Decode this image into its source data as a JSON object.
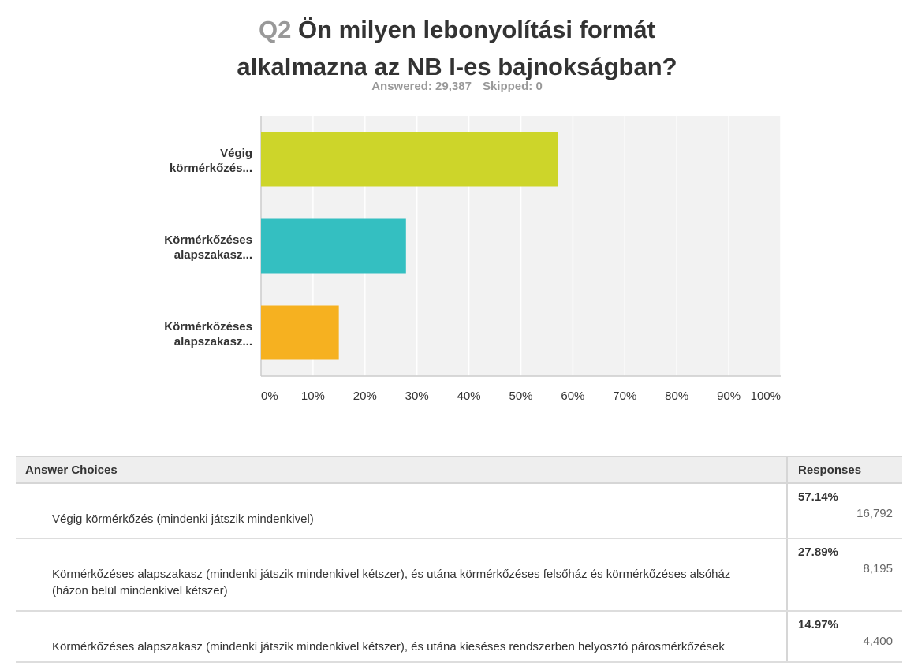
{
  "question": {
    "number": "Q2",
    "title_line1": "Ön milyen lebonyolítási formát",
    "title_line2": "alkalmazna az NB I-es bajnokságban?"
  },
  "summary": {
    "answered": "Answered: 29,387",
    "skipped": "Skipped: 0"
  },
  "chart_data": {
    "type": "bar",
    "orientation": "horizontal",
    "categories": [
      [
        "Végig",
        "körmérkőzés..."
      ],
      [
        "Körmérkőzéses",
        "alapszakasz..."
      ],
      [
        "Körmérkőzéses",
        "alapszakasz..."
      ]
    ],
    "values": [
      57.14,
      27.89,
      14.97
    ],
    "colors": [
      "#cdd52a",
      "#34bfc1",
      "#f6b120"
    ],
    "xlim": [
      0,
      100
    ],
    "xticks": [
      "0%",
      "10%",
      "20%",
      "30%",
      "40%",
      "50%",
      "60%",
      "70%",
      "80%",
      "90%",
      "100%"
    ],
    "grid": true,
    "plot_background": "#f2f2f2"
  },
  "table": {
    "headers": {
      "choices": "Answer Choices",
      "responses": "Responses"
    },
    "rows": [
      {
        "choice": "Végig körmérkőzés (mindenki játszik mindenkivel)",
        "percent": "57.14%",
        "count": "16,792"
      },
      {
        "choice": "Körmérkőzéses alapszakasz (mindenki játszik mindenkivel kétszer), és utána körmérkőzéses felsőház és körmérkőzéses alsóház (házon belül mindenkivel kétszer)",
        "percent": "27.89%",
        "count": "8,195"
      },
      {
        "choice": "Körmérkőzéses alapszakasz (mindenki játszik mindenkivel kétszer), és utána kieséses rendszerben helyosztó párosmérkőzések",
        "percent": "14.97%",
        "count": "4,400"
      }
    ]
  }
}
